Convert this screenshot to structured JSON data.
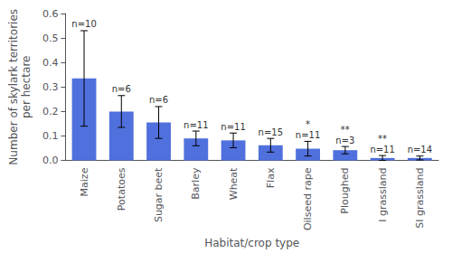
{
  "chart_data": {
    "type": "bar",
    "categories": [
      "Maize",
      "Potatoes",
      "Sugar beet",
      "Barley",
      "Wheat",
      "Flax",
      "Oilseed rape",
      "Ploughed",
      "I grassland",
      "SI grassland"
    ],
    "values": [
      0.335,
      0.2,
      0.155,
      0.09,
      0.082,
      0.062,
      0.048,
      0.042,
      0.01,
      0.01
    ],
    "errors": [
      0.195,
      0.065,
      0.065,
      0.03,
      0.03,
      0.028,
      0.03,
      0.015,
      0.01,
      0.008
    ],
    "sample_sizes": [
      "n=10",
      "n=6",
      "n=6",
      "n=11",
      "n=11",
      "n=15",
      "n=11",
      "n=3",
      "n=11",
      "n=14"
    ],
    "significance": [
      null,
      null,
      null,
      null,
      null,
      null,
      "*",
      "**",
      "**",
      null
    ],
    "ylabel": "Number of skylark territories\nper hectare",
    "xlabel": "Habitat/crop type",
    "ylim": [
      0,
      0.6
    ],
    "yticks": [
      {
        "value": 0,
        "label": "0.0"
      },
      0.1,
      0.2,
      0.3,
      0.4,
      0.5,
      0.6
    ],
    "grid": false
  }
}
